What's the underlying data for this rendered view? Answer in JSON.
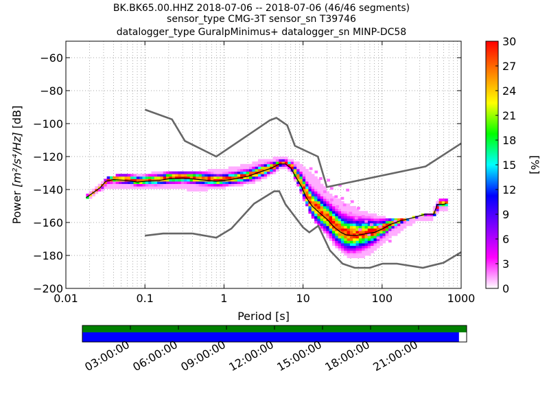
{
  "chart_data": {
    "type": "heatmap",
    "title": [
      "BK.BK65.00.HHZ   2018-07-06 -- 2018-07-06  (46/46 segments)",
      "sensor_type CMG-3T sensor_sn T39746",
      "datalogger_type GuralpMinimus+ datalogger_sn MINP-DC58"
    ],
    "xlabel": "Period [s]",
    "ylabel_prefix": "Power ",
    "ylabel_units": "[m²/s⁴/Hz]",
    "ylabel_suffix": " [dB]",
    "x_scale": "log",
    "xlim": [
      0.01,
      1000
    ],
    "ylim": [
      -200,
      -50
    ],
    "x_ticks": [
      0.01,
      0.1,
      1,
      10,
      100,
      1000
    ],
    "x_tick_labels": [
      "0.01",
      "0.1",
      "1",
      "10",
      "100",
      "1000"
    ],
    "y_ticks": [
      -200,
      -180,
      -160,
      -140,
      -120,
      -100,
      -80,
      -60
    ],
    "y_tick_labels": [
      "−200",
      "−180",
      "−160",
      "−140",
      "−120",
      "−100",
      "−80",
      "−60"
    ],
    "grid": "dotted vertical at log subdivisions, horizontal at major ticks",
    "colorbar": {
      "label": "[%]",
      "range": [
        0,
        30
      ],
      "ticks": [
        0,
        3,
        6,
        9,
        12,
        15,
        18,
        21,
        24,
        27,
        30
      ],
      "tick_labels": [
        "0",
        "3",
        "6",
        "9",
        "12",
        "15",
        "18",
        "21",
        "24",
        "27",
        "30"
      ],
      "colormap": [
        "#ffffff",
        "#ff00ff",
        "#8000ff",
        "#0000ff",
        "#00ffff",
        "#00ff00",
        "#ffff00",
        "#ff8000",
        "#ff0000"
      ]
    },
    "nhnm": {
      "name": "NHNM",
      "color": "#666666",
      "points": [
        [
          0.1,
          -91.5
        ],
        [
          0.22,
          -97.4
        ],
        [
          0.32,
          -110.5
        ],
        [
          0.8,
          -120
        ],
        [
          3.8,
          -98
        ],
        [
          4.6,
          -96.5
        ],
        [
          6.3,
          -101
        ],
        [
          7.9,
          -113.5
        ],
        [
          15.4,
          -120
        ],
        [
          20,
          -138.5
        ],
        [
          354.8,
          -126
        ],
        [
          1000,
          -112
        ]
      ]
    },
    "nlnm": {
      "name": "NLNM",
      "color": "#666666",
      "points": [
        [
          0.1,
          -168
        ],
        [
          0.17,
          -166.7
        ],
        [
          0.4,
          -166.7
        ],
        [
          0.8,
          -169.2
        ],
        [
          1.24,
          -163.7
        ],
        [
          2.4,
          -148.6
        ],
        [
          4.3,
          -141.1
        ],
        [
          5.0,
          -141.1
        ],
        [
          6.0,
          -149
        ],
        [
          10.0,
          -163
        ],
        [
          12.0,
          -166
        ],
        [
          15.6,
          -162
        ],
        [
          21.9,
          -177
        ],
        [
          31.6,
          -185
        ],
        [
          45,
          -187.5
        ],
        [
          70,
          -187.5
        ],
        [
          101,
          -185
        ],
        [
          154,
          -185
        ],
        [
          328,
          -187.5
        ],
        [
          600,
          -184.4
        ],
        [
          1000,
          -178
        ]
      ]
    },
    "mode": {
      "name": "mode",
      "color": "#000000",
      "points": [
        [
          0.018,
          -145
        ],
        [
          0.022,
          -142
        ],
        [
          0.027,
          -139
        ],
        [
          0.032,
          -135
        ],
        [
          0.04,
          -134
        ],
        [
          0.06,
          -134.5
        ],
        [
          0.08,
          -135.5
        ],
        [
          0.1,
          -135
        ],
        [
          0.15,
          -134.5
        ],
        [
          0.2,
          -133.5
        ],
        [
          0.3,
          -133
        ],
        [
          0.5,
          -134
        ],
        [
          0.8,
          -135
        ],
        [
          1.2,
          -134
        ],
        [
          2.0,
          -132
        ],
        [
          3.0,
          -129
        ],
        [
          4.0,
          -127
        ],
        [
          5.0,
          -124.5
        ],
        [
          6.0,
          -124.5
        ],
        [
          7.0,
          -127
        ],
        [
          8.0,
          -132
        ],
        [
          9.5,
          -138
        ],
        [
          11,
          -145
        ],
        [
          13,
          -150
        ],
        [
          16,
          -154
        ],
        [
          20,
          -158
        ],
        [
          25,
          -163
        ],
        [
          30,
          -166
        ],
        [
          35,
          -167.5
        ],
        [
          45,
          -168
        ],
        [
          60,
          -167
        ],
        [
          80,
          -166
        ],
        [
          100,
          -164
        ],
        [
          130,
          -161
        ],
        [
          170,
          -159
        ],
        [
          250,
          -157
        ],
        [
          350,
          -155
        ],
        [
          450,
          -155
        ],
        [
          500,
          -149
        ],
        [
          600,
          -149
        ],
        [
          650,
          -148.5
        ]
      ]
    },
    "data_upper": [
      [
        0.018,
        -144
      ],
      [
        0.025,
        -138
      ],
      [
        0.032,
        -133
      ],
      [
        0.05,
        -131
      ],
      [
        0.1,
        -131
      ],
      [
        0.2,
        -129
      ],
      [
        0.3,
        -130
      ],
      [
        0.6,
        -129
      ],
      [
        1,
        -128
      ],
      [
        2,
        -125
      ],
      [
        3,
        -122
      ],
      [
        5,
        -121
      ],
      [
        7,
        -122
      ],
      [
        10,
        -127
      ],
      [
        14,
        -133
      ],
      [
        20,
        -142
      ],
      [
        30,
        -148
      ],
      [
        50,
        -153
      ],
      [
        80,
        -156
      ],
      [
        120,
        -158
      ],
      [
        200,
        -158
      ],
      [
        300,
        -156
      ],
      [
        400,
        -155
      ],
      [
        500,
        -146
      ],
      [
        650,
        -146
      ]
    ],
    "data_lower": [
      [
        0.018,
        -145.5
      ],
      [
        0.025,
        -141
      ],
      [
        0.032,
        -138
      ],
      [
        0.05,
        -139
      ],
      [
        0.1,
        -139
      ],
      [
        0.2,
        -139
      ],
      [
        0.5,
        -140
      ],
      [
        1,
        -138
      ],
      [
        2,
        -136
      ],
      [
        3,
        -133
      ],
      [
        5,
        -127
      ],
      [
        6,
        -126
      ],
      [
        7,
        -130
      ],
      [
        9,
        -142
      ],
      [
        12,
        -155
      ],
      [
        17,
        -165
      ],
      [
        25,
        -175
      ],
      [
        35,
        -181
      ],
      [
        50,
        -181
      ],
      [
        70,
        -178
      ],
      [
        100,
        -172
      ],
      [
        150,
        -166
      ],
      [
        250,
        -159
      ],
      [
        400,
        -158
      ],
      [
        500,
        -152
      ],
      [
        650,
        -152
      ]
    ],
    "scatter_cells": [
      [
        18,
        -142
      ],
      [
        22,
        -140
      ],
      [
        28,
        -138
      ],
      [
        25,
        -145
      ],
      [
        30,
        -146
      ],
      [
        32,
        -150
      ],
      [
        38,
        -155
      ],
      [
        45,
        -158
      ],
      [
        55,
        -157
      ],
      [
        60,
        -160
      ],
      [
        70,
        -162
      ],
      [
        90,
        -163
      ],
      [
        40,
        -148
      ],
      [
        48,
        -152
      ],
      [
        35,
        -141
      ],
      [
        20,
        -135
      ],
      [
        16,
        -134
      ],
      [
        14,
        -130
      ],
      [
        12,
        -128
      ],
      [
        22,
        -147
      ],
      [
        26,
        -151
      ],
      [
        50,
        -165
      ],
      [
        65,
        -168
      ],
      [
        85,
        -170
      ],
      [
        110,
        -168
      ],
      [
        120,
        -172
      ],
      [
        140,
        -160
      ]
    ],
    "time_ticks": [
      "03:00:00",
      "06:00:00",
      "09:00:00",
      "12:00:00",
      "15:00:00",
      "18:00:00",
      "21:00:00"
    ],
    "coverage": {
      "data_color": "#008000",
      "processed_color": "#0000ff",
      "processed_fraction": 0.98
    }
  }
}
